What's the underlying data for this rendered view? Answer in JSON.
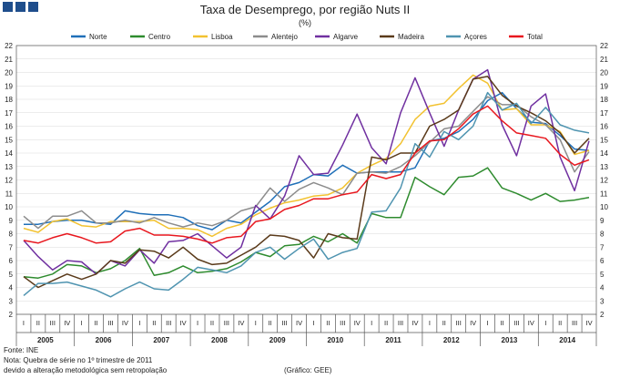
{
  "chart_data": {
    "type": "line",
    "title": "Taxa de Desemprego, por região Nuts II",
    "subtitle": "(%)",
    "ylim": [
      2,
      22
    ],
    "yticks": [
      2,
      3,
      4,
      5,
      6,
      7,
      8,
      9,
      10,
      11,
      12,
      13,
      14,
      15,
      16,
      17,
      18,
      19,
      20,
      21,
      22
    ],
    "grid": true,
    "legend_position": "top",
    "quarter_labels": [
      "I",
      "II",
      "III",
      "IV"
    ],
    "years": [
      "2005",
      "2006",
      "2007",
      "2008",
      "2009",
      "2010",
      "2011",
      "2012",
      "2013",
      "2014"
    ],
    "last_year_quarters": 4,
    "series": [
      {
        "name": "Norte",
        "color": "#1f6fb8",
        "values": [
          8.7,
          8.7,
          8.9,
          9.0,
          9.0,
          8.8,
          8.7,
          9.7,
          9.5,
          9.4,
          9.4,
          9.2,
          8.6,
          8.3,
          9.0,
          8.8,
          9.6,
          10.4,
          11.5,
          11.8,
          12.4,
          12.3,
          13.1,
          12.5,
          12.6,
          12.6,
          12.6,
          12.9,
          14.9,
          15.1,
          15.6,
          16.5,
          17.9,
          18.5,
          17.3,
          16.3,
          16.2,
          15.3,
          14.3,
          14.2
        ]
      },
      {
        "name": "Centro",
        "color": "#2e8b2e",
        "values": [
          4.8,
          4.7,
          5.0,
          5.7,
          5.6,
          5.1,
          5.4,
          6.0,
          6.9,
          4.9,
          5.1,
          5.6,
          5.1,
          5.2,
          5.4,
          5.9,
          6.6,
          6.3,
          7.1,
          7.2,
          7.8,
          7.4,
          8.0,
          7.3,
          9.5,
          9.2,
          9.2,
          12.2,
          11.5,
          10.9,
          12.2,
          12.3,
          12.9,
          11.4,
          11.0,
          10.5,
          11.0,
          10.4,
          10.5,
          10.7
        ]
      },
      {
        "name": "Lisboa",
        "color": "#f2c230",
        "values": [
          8.4,
          8.1,
          8.9,
          9.1,
          8.6,
          8.5,
          8.9,
          8.9,
          8.9,
          9.0,
          8.4,
          8.4,
          8.3,
          7.8,
          8.4,
          8.7,
          9.4,
          9.9,
          10.3,
          10.5,
          10.8,
          10.9,
          11.4,
          12.5,
          13.1,
          13.6,
          14.7,
          16.5,
          17.5,
          17.7,
          18.8,
          19.8,
          19.2,
          17.2,
          17.3,
          16.1,
          16.1,
          15.6,
          13.9,
          14.2
        ]
      },
      {
        "name": "Alentejo",
        "color": "#8c8c8c",
        "values": [
          9.3,
          8.4,
          9.3,
          9.3,
          9.7,
          8.8,
          8.8,
          9.0,
          8.8,
          9.2,
          8.8,
          8.5,
          8.8,
          8.6,
          9.0,
          9.7,
          10.0,
          11.4,
          10.4,
          11.3,
          11.8,
          11.4,
          10.9,
          12.5,
          12.6,
          12.5,
          13.0,
          13.8,
          14.8,
          15.8,
          16.0,
          17.1,
          18.2,
          17.6,
          17.6,
          16.7,
          16.1,
          15.0,
          12.6,
          14.1
        ]
      },
      {
        "name": "Algarve",
        "color": "#7030a0",
        "values": [
          7.5,
          6.3,
          5.3,
          6.0,
          5.9,
          5.0,
          6.0,
          5.6,
          6.8,
          5.8,
          7.4,
          7.5,
          8.0,
          7.1,
          6.2,
          7.0,
          10.1,
          9.1,
          10.8,
          13.8,
          12.4,
          12.5,
          14.6,
          16.9,
          14.4,
          13.2,
          17.0,
          19.6,
          17.0,
          14.5,
          17.2,
          19.5,
          20.2,
          16.1,
          13.8,
          17.5,
          18.4,
          13.7,
          11.2,
          14.9
        ]
      },
      {
        "name": "Madeira",
        "color": "#5a3a1a",
        "values": [
          4.8,
          4.0,
          4.5,
          5.0,
          4.6,
          5.0,
          6.0,
          5.8,
          6.8,
          6.7,
          6.2,
          7.0,
          6.1,
          5.7,
          5.8,
          6.4,
          7.0,
          7.9,
          7.8,
          7.5,
          6.2,
          8.0,
          7.7,
          7.6,
          13.7,
          13.5,
          14.0,
          14.0,
          16.0,
          16.5,
          17.2,
          19.5,
          19.7,
          18.3,
          17.5,
          17.0,
          16.4,
          15.5,
          14.0,
          15.1
        ]
      },
      {
        "name": "Açores",
        "color": "#4f94b0",
        "values": [
          3.4,
          4.3,
          4.3,
          4.4,
          4.1,
          3.8,
          3.3,
          3.9,
          4.4,
          3.9,
          3.8,
          4.6,
          5.5,
          5.3,
          5.1,
          5.6,
          6.6,
          7.0,
          6.1,
          6.9,
          7.6,
          6.1,
          6.6,
          6.9,
          9.6,
          9.7,
          11.4,
          14.7,
          13.7,
          15.6,
          15.0,
          16.0,
          18.5,
          17.2,
          17.7,
          16.2,
          17.4,
          16.1,
          15.7,
          15.5
        ]
      },
      {
        "name": "Total",
        "color": "#e8171e",
        "values": [
          7.5,
          7.3,
          7.7,
          8.0,
          7.7,
          7.3,
          7.4,
          8.2,
          8.4,
          7.9,
          7.9,
          7.8,
          7.6,
          7.3,
          7.7,
          7.8,
          8.9,
          9.1,
          9.8,
          10.1,
          10.6,
          10.6,
          10.9,
          11.1,
          12.4,
          12.1,
          12.4,
          14.0,
          14.9,
          15.0,
          15.8,
          16.9,
          17.5,
          16.4,
          15.5,
          15.3,
          15.1,
          13.9,
          13.1,
          13.5
        ]
      }
    ]
  },
  "footnotes": {
    "source": "Fonte: INE",
    "note_line1": "Nota: Quebra de série no 1º trimestre de 2011",
    "note_line2": "devido a alteração metodológica sem retropolação",
    "credit": "(Gráfico: GEE)"
  }
}
